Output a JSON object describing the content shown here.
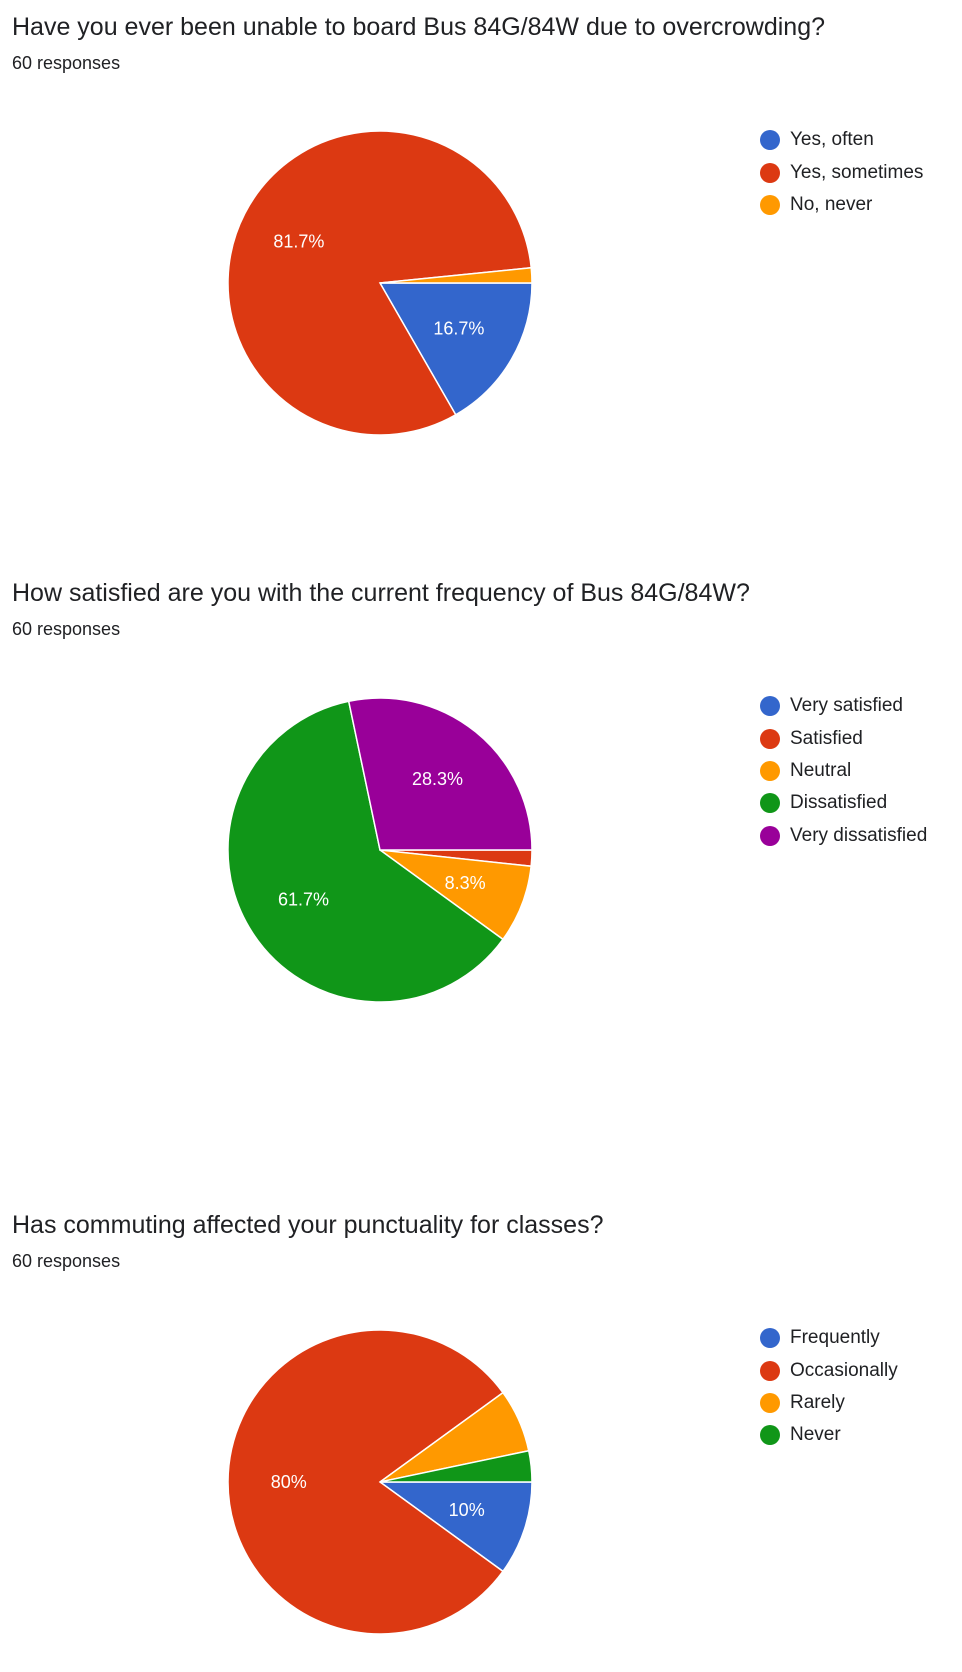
{
  "chart_data": [
    {
      "type": "pie",
      "title": "Have you ever been unable to board Bus 84G/84W due to overcrowding?",
      "subtitle": "60 responses",
      "legend_position": "right",
      "categories": [
        "Yes, often",
        "Yes, sometimes",
        "No, never"
      ],
      "values": [
        16.7,
        81.7,
        1.6
      ],
      "data_labels": [
        "16.7%",
        "81.7%",
        ""
      ],
      "colors": [
        "#3366cc",
        "#dc3912",
        "#ff9900"
      ]
    },
    {
      "type": "pie",
      "title": "How satisfied are you with the current frequency of Bus 84G/84W?",
      "subtitle": "60 responses",
      "legend_position": "right",
      "categories": [
        "Very satisfied",
        "Satisfied",
        "Neutral",
        "Dissatisfied",
        "Very dissatisfied"
      ],
      "values": [
        0,
        1.7,
        8.3,
        61.7,
        28.3
      ],
      "data_labels": [
        "",
        "",
        "8.3%",
        "61.7%",
        "28.3%"
      ],
      "colors": [
        "#3366cc",
        "#dc3912",
        "#ff9900",
        "#109618",
        "#990099"
      ]
    },
    {
      "type": "pie",
      "title": "Has commuting affected your punctuality for classes?",
      "subtitle": "60 responses",
      "legend_position": "right",
      "categories": [
        "Frequently",
        "Occasionally",
        "Rarely",
        "Never"
      ],
      "values": [
        10,
        80,
        6.7,
        3.3
      ],
      "data_labels": [
        "10%",
        "80%",
        "",
        ""
      ],
      "colors": [
        "#3366cc",
        "#dc3912",
        "#ff9900",
        "#109618"
      ]
    }
  ]
}
